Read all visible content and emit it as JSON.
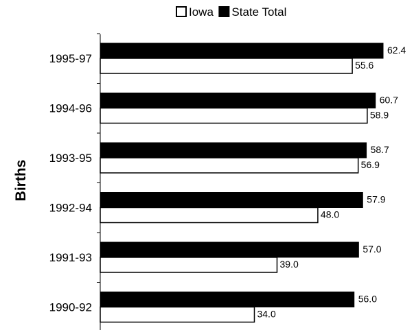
{
  "chart_data": {
    "type": "bar",
    "orientation": "horizontal",
    "categories": [
      "1990-92",
      "1991-93",
      "1992-94",
      "1993-95",
      "1994-96",
      "1995-97"
    ],
    "series": [
      {
        "name": "State Total",
        "values": [
          56.0,
          57.0,
          57.9,
          58.7,
          60.7,
          62.4
        ],
        "color": "#000000",
        "labels": [
          "56.0",
          "57.0",
          "57.9",
          "58.7",
          "60.7",
          "62.4"
        ]
      },
      {
        "name": "Iowa",
        "values": [
          34.0,
          39.0,
          48.0,
          56.9,
          58.9,
          55.6
        ],
        "color": "#ffffff",
        "labels": [
          "34.0",
          "39.0",
          "48.0",
          "56.9",
          "58.9",
          "55.6"
        ]
      }
    ],
    "title": "",
    "xlabel": "",
    "ylabel": "Births",
    "xlim": [
      0,
      63
    ],
    "grid": false,
    "legend_position": "top",
    "legend": [
      {
        "name": "Iowa",
        "swatch": "#ffffff"
      },
      {
        "name": "State Total",
        "swatch": "#000000"
      }
    ]
  }
}
